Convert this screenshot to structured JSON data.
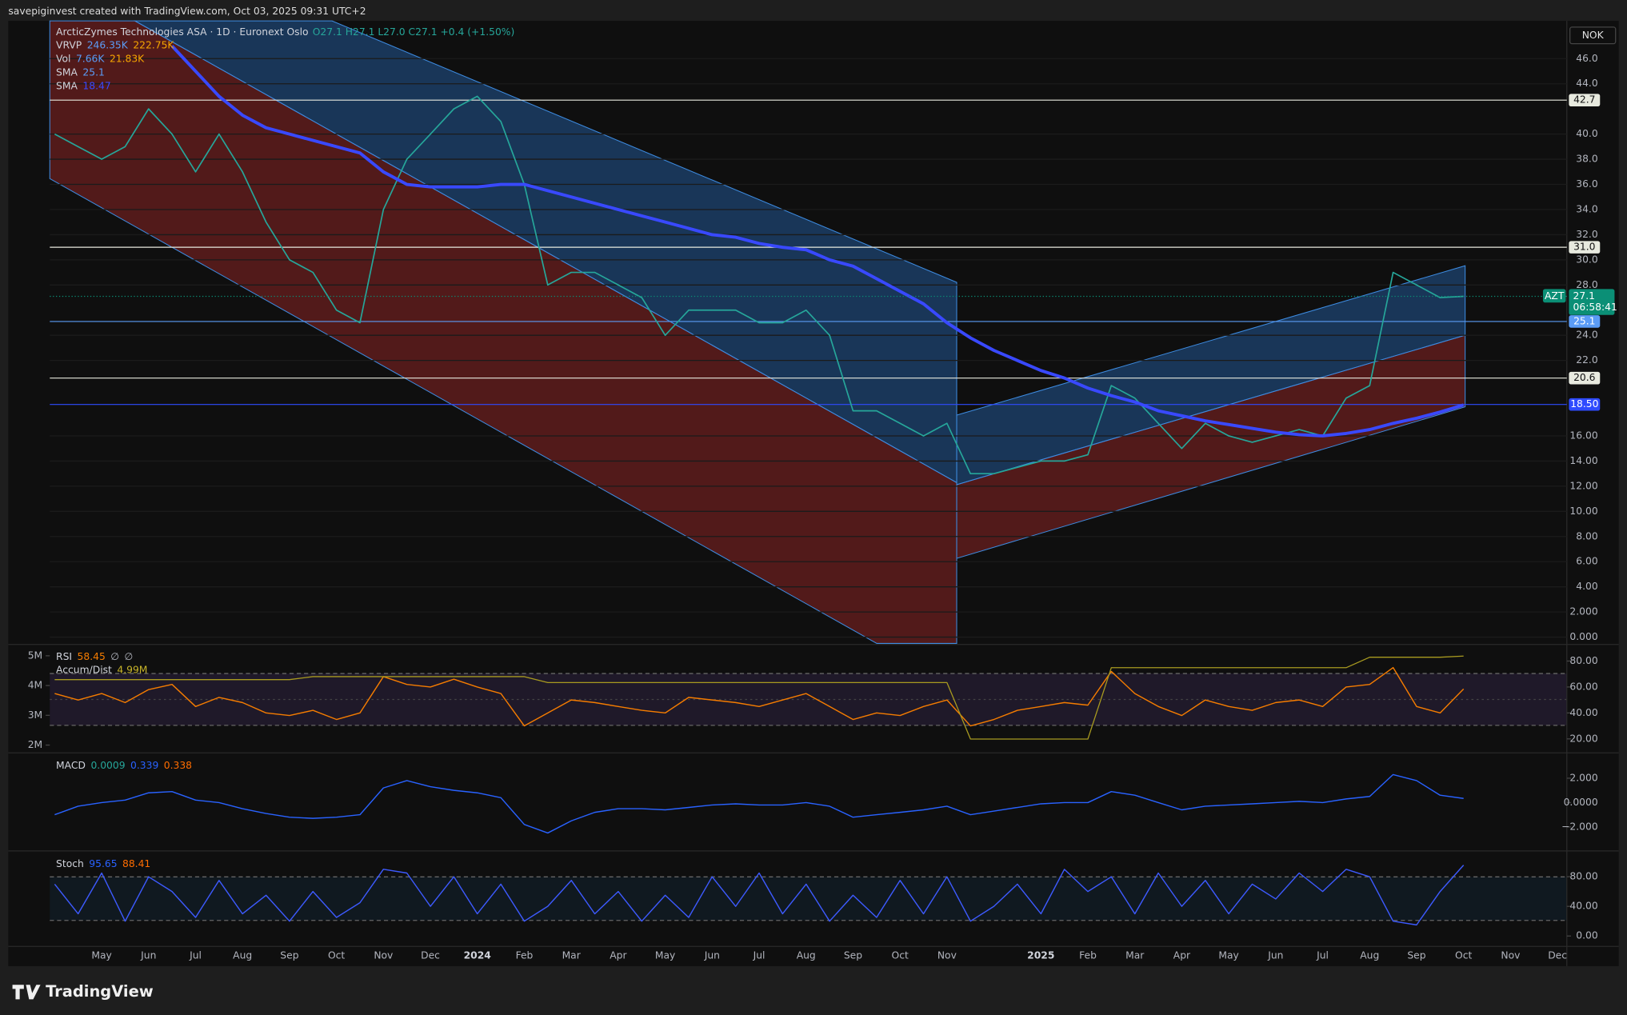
{
  "header": "savepiginvest created with TradingView.com, Oct 03, 2025 09:31 UTC+2",
  "brand": "TradingView",
  "currency": "NOK",
  "chart_data": [
    {
      "type": "line",
      "title": "ArcticZymes Technologies ASA · 1D · Euronext Oslo",
      "ohlc": "O27.1 H27.1 L27.0 C27.1 +0.4 (+1.50%)",
      "legend": [
        {
          "label": "VRVP",
          "values": [
            "246.35K",
            "222.75K"
          ],
          "colors": [
            "#5b9cf6",
            "#f7a600"
          ]
        },
        {
          "label": "Vol",
          "values": [
            "7.66K",
            "21.83K"
          ],
          "colors": [
            "#5b9cf6",
            "#f7a600"
          ]
        },
        {
          "label": "SMA",
          "values": [
            "25.1"
          ],
          "colors": [
            "#5b9cf6"
          ]
        },
        {
          "label": "SMA",
          "values": [
            "18.47"
          ],
          "colors": [
            "#3949ff"
          ]
        }
      ],
      "categories": [
        null,
        null,
        "May",
        null,
        "Jun",
        null,
        "Jul",
        null,
        "Aug",
        null,
        "Sep",
        null,
        "Oct",
        null,
        "Nov",
        null,
        "Dec",
        null,
        "2024",
        null,
        "Feb",
        null,
        "Mar",
        null,
        "Apr",
        null,
        "May",
        null,
        "Jun",
        null,
        "Jul",
        null,
        "Aug",
        null,
        "Sep",
        null,
        "Oct",
        null,
        "Nov",
        null,
        null,
        null,
        "2025",
        null,
        "Feb",
        null,
        "Mar",
        null,
        "Apr",
        null,
        "May",
        null,
        "Jun",
        null,
        "Jul",
        null,
        "Aug",
        null,
        "Sep",
        null,
        "Oct",
        null,
        "Nov",
        null,
        "Dec"
      ],
      "series": [
        {
          "name": "AZT",
          "color": "#26a69a",
          "width": 1.3,
          "values": [
            40,
            39,
            38,
            39,
            42,
            40,
            37,
            40,
            37,
            33,
            30,
            29,
            26,
            25,
            34,
            38,
            40,
            42,
            43,
            41,
            36,
            28,
            29,
            29,
            28,
            27,
            24,
            26,
            26,
            26,
            25,
            25,
            26,
            24,
            18,
            18,
            17,
            16,
            17,
            13,
            13,
            13.5,
            14,
            14,
            14.5,
            20,
            19,
            17,
            15,
            17,
            16,
            15.5,
            16,
            16.5,
            16,
            19,
            20,
            29,
            28,
            27,
            27.1,
            null,
            null,
            null,
            null
          ]
        },
        {
          "name": "SMA",
          "color": "#3949ff",
          "width": 3,
          "values": [
            null,
            null,
            null,
            null,
            null,
            47,
            45,
            43,
            41.5,
            40.5,
            40,
            39.5,
            39,
            38.5,
            37,
            36,
            35.8,
            35.8,
            35.8,
            36,
            36,
            35.5,
            35,
            34.5,
            34,
            33.5,
            33,
            32.5,
            32,
            31.8,
            31.3,
            31,
            30.8,
            30,
            29.5,
            28.5,
            27.5,
            26.5,
            25,
            23.8,
            22.8,
            22,
            21.2,
            20.6,
            19.8,
            19.2,
            18.7,
            18,
            17.6,
            17.2,
            16.9,
            16.6,
            16.3,
            16.1,
            16,
            16.2,
            16.5,
            17,
            17.4,
            17.9,
            18.47,
            null,
            null,
            null,
            null
          ]
        }
      ],
      "levels": [
        {
          "value": 42.7,
          "color": "#e8eadf"
        },
        {
          "value": 31.0,
          "label": "31.0",
          "color": "#e8eadf"
        },
        {
          "value": 25.1,
          "color": "#5b9cf6"
        },
        {
          "value": 20.6,
          "color": "#e8eadf"
        },
        {
          "value": 18.5,
          "label": "18.50",
          "color": "#2f4bff"
        }
      ],
      "price_label": {
        "symbol": "AZT",
        "value": 27.1,
        "countdown": "06:58:41",
        "color": "#0b8f76"
      },
      "ylim": [
        -0.5,
        49
      ],
      "yticks": [
        {
          "value": 0,
          "label": "0.000"
        },
        {
          "value": 2,
          "label": "2.000"
        },
        {
          "value": 4,
          "label": "4.00"
        },
        {
          "value": 6,
          "label": "6.00"
        },
        {
          "value": 8,
          "label": "8.00"
        },
        {
          "value": 10,
          "label": "10.00"
        },
        {
          "value": 12,
          "label": "12.00"
        },
        {
          "value": 14,
          "label": "14.00"
        },
        {
          "value": 16,
          "label": "16.00"
        },
        {
          "value": 22,
          "label": "22.0"
        },
        {
          "value": 24,
          "label": "24.0"
        },
        {
          "value": 28,
          "label": "28.0"
        },
        {
          "value": 30,
          "label": "30.0"
        },
        {
          "value": 32,
          "label": "32.0"
        },
        {
          "value": 34,
          "label": "34.0"
        },
        {
          "value": 36,
          "label": "36.0"
        },
        {
          "value": 38,
          "label": "38.0"
        },
        {
          "value": 40,
          "label": "40.0"
        },
        {
          "value": 44,
          "label": "44.0"
        },
        {
          "value": 46,
          "label": "46.0"
        }
      ],
      "grid": true
    },
    {
      "type": "line",
      "legend": [
        {
          "label": "RSI",
          "values": [
            "58.45",
            "∅",
            "∅"
          ],
          "colors": [
            "#f57c00",
            "#b2b5be",
            "#b2b5be"
          ]
        },
        {
          "label": "Accum/Dist",
          "values": [
            "4.99M"
          ],
          "colors": [
            "#c9b52a"
          ]
        }
      ],
      "series": [
        {
          "color": "#f57c00",
          "width": 1.1,
          "values": [
            55,
            50,
            55,
            48,
            58,
            62,
            45,
            52,
            48,
            40,
            38,
            42,
            35,
            40,
            68,
            62,
            60,
            66,
            60,
            55,
            30,
            40,
            50,
            48,
            45,
            42,
            40,
            52,
            50,
            48,
            45,
            50,
            55,
            45,
            35,
            40,
            38,
            45,
            50,
            30,
            35,
            42,
            45,
            48,
            46,
            72,
            55,
            45,
            38,
            50,
            45,
            42,
            48,
            50,
            45,
            60,
            62,
            75,
            45,
            40,
            58.45,
            null,
            null,
            null,
            null
          ]
        },
        {
          "color": "#a89a20",
          "width": 1,
          "axis": "y2",
          "values": [
            4200000,
            4200000,
            4200000,
            4200000,
            4200000,
            4200000,
            4200000,
            4200000,
            4200000,
            4200000,
            4200000,
            4300000,
            4300000,
            4300000,
            4300000,
            4300000,
            4300000,
            4300000,
            4300000,
            4300000,
            4300000,
            4100000,
            4100000,
            4100000,
            4100000,
            4100000,
            4100000,
            4100000,
            4100000,
            4100000,
            4100000,
            4100000,
            4100000,
            4100000,
            4100000,
            4100000,
            4100000,
            4100000,
            4100000,
            2200000,
            2200000,
            2200000,
            2200000,
            2200000,
            2200000,
            4600000,
            4600000,
            4600000,
            4600000,
            4600000,
            4600000,
            4600000,
            4600000,
            4600000,
            4600000,
            4600000,
            4950000,
            4950000,
            4950000,
            4950000,
            4990000,
            null,
            null,
            null,
            null
          ]
        }
      ],
      "ylim": [
        10.4,
        92
      ],
      "yticks": [
        {
          "value": 20,
          "label": "20.00"
        },
        {
          "value": 40,
          "label": "40.00"
        },
        {
          "value": 60,
          "label": "60.00"
        },
        {
          "value": 80,
          "label": "80.00"
        }
      ],
      "y2lim": [
        1790000,
        5345000
      ],
      "y2ticks": [
        {
          "value": 2000000,
          "label": "2M"
        },
        {
          "value": 3000000,
          "label": "3M"
        },
        {
          "value": 4000000,
          "label": "4M"
        },
        {
          "value": 5000000,
          "label": "5M"
        }
      ],
      "grid": false
    },
    {
      "type": "line",
      "legend": [
        {
          "label": "MACD",
          "values": [
            "0.0009",
            "0.339",
            "0.338"
          ],
          "colors": [
            "#26a69a",
            "#2962ff",
            "#ff6d00"
          ]
        }
      ],
      "series": [
        {
          "color": "#2962ff",
          "width": 1.1,
          "values": [
            -1,
            -0.3,
            0,
            0.2,
            0.8,
            0.9,
            0.2,
            0,
            -0.5,
            -0.9,
            -1.2,
            -1.3,
            -1.2,
            -1,
            1.2,
            1.8,
            1.3,
            1,
            0.8,
            0.4,
            -1.8,
            -2.5,
            -1.5,
            -0.8,
            -0.5,
            -0.5,
            -0.6,
            -0.4,
            -0.2,
            -0.1,
            -0.2,
            -0.2,
            0,
            -0.3,
            -1.2,
            -1,
            -0.8,
            -0.6,
            -0.3,
            -1,
            -0.7,
            -0.4,
            -0.1,
            0,
            0,
            0.9,
            0.6,
            0,
            -0.6,
            -0.3,
            -0.2,
            -0.1,
            0,
            0.1,
            0,
            0.3,
            0.5,
            2.3,
            1.8,
            0.6,
            0.339,
            null,
            null,
            null,
            null
          ]
        }
      ],
      "ylim": [
        -3.8,
        3.95
      ],
      "yticks": [
        {
          "value": -2,
          "label": "−2.000"
        },
        {
          "value": 0,
          "label": "0.0000"
        },
        {
          "value": 2,
          "label": "2.000"
        }
      ],
      "grid": false
    },
    {
      "type": "line",
      "legend": [
        {
          "label": "Stoch",
          "values": [
            "95.65",
            "88.41"
          ],
          "colors": [
            "#2962ff",
            "#ff6d00"
          ]
        }
      ],
      "series": [
        {
          "color": "#3d5afe",
          "width": 1.1,
          "values": [
            70,
            30,
            85,
            20,
            80,
            60,
            25,
            75,
            30,
            55,
            20,
            60,
            25,
            45,
            90,
            85,
            40,
            80,
            30,
            70,
            20,
            40,
            75,
            30,
            60,
            20,
            55,
            25,
            80,
            40,
            85,
            30,
            70,
            20,
            55,
            25,
            75,
            30,
            80,
            20,
            40,
            70,
            30,
            90,
            60,
            80,
            30,
            85,
            40,
            75,
            30,
            70,
            50,
            85,
            60,
            90,
            80,
            20,
            15,
            60,
            95.65,
            null,
            null,
            null,
            null
          ]
        }
      ],
      "ylim": [
        -14,
        112
      ],
      "yticks": [
        {
          "value": 0,
          "label": "0.00"
        },
        {
          "value": 40,
          "label": "40.00"
        },
        {
          "value": 80,
          "label": "80.00"
        }
      ],
      "grid": false
    }
  ]
}
